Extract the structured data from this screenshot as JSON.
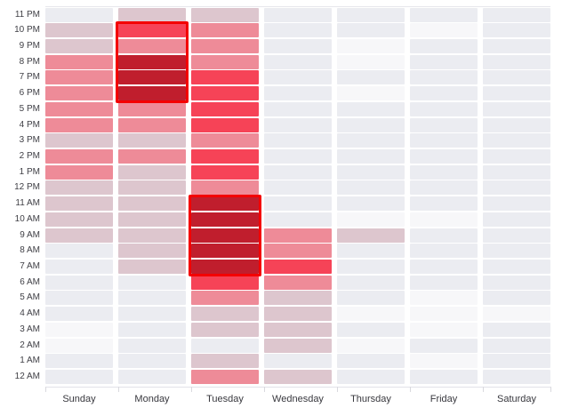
{
  "chart_data": {
    "type": "heatmap",
    "title": "",
    "xlabel": "",
    "ylabel": "",
    "x_categories": [
      "Sunday",
      "Monday",
      "Tuesday",
      "Wednesday",
      "Thursday",
      "Friday",
      "Saturday"
    ],
    "y_categories": [
      "11 PM",
      "10 PM",
      "9 PM",
      "8 PM",
      "7 PM",
      "6 PM",
      "5 PM",
      "4 PM",
      "3 PM",
      "2 PM",
      "1 PM",
      "12 PM",
      "11 AM",
      "10 AM",
      "9 AM",
      "8 AM",
      "7 AM",
      "6 AM",
      "5 AM",
      "4 AM",
      "3 AM",
      "2 AM",
      "1 AM",
      "12 AM"
    ],
    "values_note": "intensity level per cell read from color; 0=lowest(white) .. 5=highest(dark crimson); no numeric legend visible",
    "values": [
      [
        1,
        2,
        2,
        1,
        1,
        1,
        1
      ],
      [
        2,
        4,
        3,
        1,
        1,
        0,
        1
      ],
      [
        2,
        3,
        3,
        1,
        0,
        1,
        1
      ],
      [
        3,
        5,
        3,
        1,
        0,
        1,
        1
      ],
      [
        3,
        5,
        4,
        1,
        1,
        1,
        1
      ],
      [
        3,
        5,
        4,
        1,
        0,
        1,
        1
      ],
      [
        3,
        3,
        4,
        1,
        1,
        1,
        1
      ],
      [
        3,
        3,
        4,
        1,
        1,
        1,
        1
      ],
      [
        2,
        2,
        3,
        1,
        1,
        1,
        1
      ],
      [
        3,
        3,
        4,
        1,
        1,
        1,
        1
      ],
      [
        3,
        2,
        4,
        1,
        1,
        1,
        1
      ],
      [
        2,
        2,
        3,
        1,
        1,
        1,
        1
      ],
      [
        2,
        2,
        5,
        1,
        1,
        1,
        1
      ],
      [
        2,
        2,
        5,
        1,
        0,
        0,
        1
      ],
      [
        2,
        2,
        5,
        3,
        2,
        1,
        1
      ],
      [
        1,
        2,
        5,
        3,
        1,
        1,
        1
      ],
      [
        1,
        2,
        5,
        4,
        1,
        1,
        1
      ],
      [
        1,
        1,
        4,
        3,
        1,
        1,
        1
      ],
      [
        1,
        1,
        3,
        2,
        1,
        0,
        1
      ],
      [
        1,
        1,
        2,
        2,
        0,
        0,
        0
      ],
      [
        0,
        1,
        2,
        2,
        1,
        0,
        1
      ],
      [
        0,
        1,
        1,
        2,
        0,
        1,
        1
      ],
      [
        1,
        1,
        2,
        1,
        1,
        0,
        1
      ],
      [
        1,
        1,
        3,
        2,
        1,
        1,
        1
      ]
    ],
    "palette": {
      "0": "#f7f7f9",
      "1": "#ebecf1",
      "2": "#ddc6ce",
      "3": "#ee8b98",
      "4": "#f64357",
      "5": "#c01e2d"
    },
    "highlights": [
      {
        "day": "Monday",
        "hour_start": "10 PM",
        "hour_end": "6 PM",
        "outline_color": "#f40000"
      },
      {
        "day": "Tuesday",
        "hour_start": "11 AM",
        "hour_end": "7 AM",
        "outline_color": "#f40000"
      }
    ],
    "legend": "none",
    "grid": "white gaps between cells",
    "axis_line_color": "#e2e2e8",
    "tick_color": "#d9d9de",
    "label_color": "#3f3f45"
  }
}
